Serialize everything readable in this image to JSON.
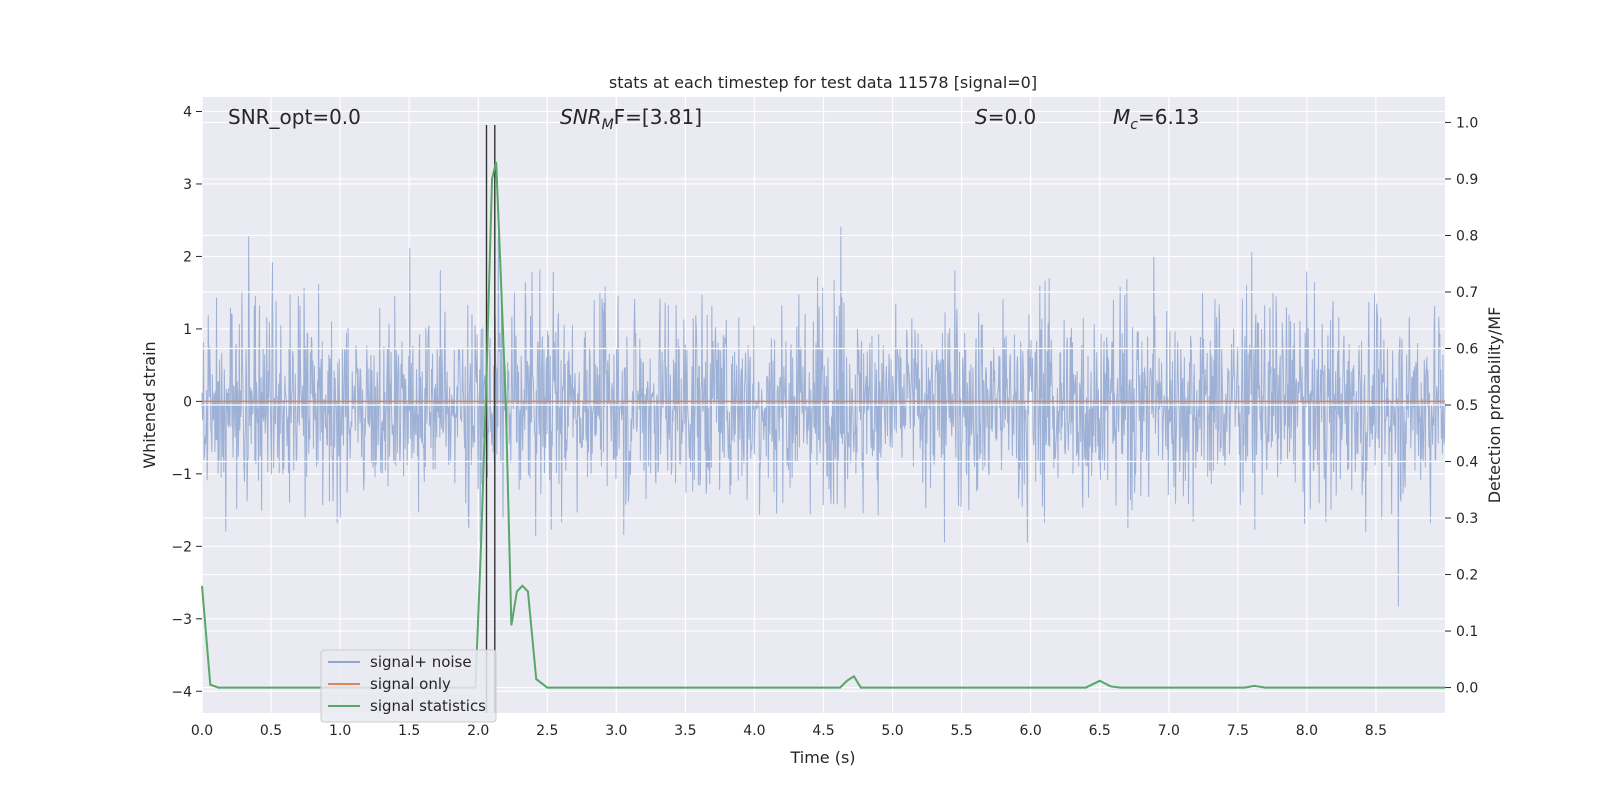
{
  "chart_data": {
    "type": "line",
    "title": "stats at each timestep for test data 11578 [signal=0]",
    "xlabel": "Time (s)",
    "ylabel": "Whitened strain",
    "y2label": "Detection probability/MF",
    "xlim": [
      0.0,
      9.0
    ],
    "ylim": [
      -4.3,
      4.2
    ],
    "y2lim": [
      -0.045,
      1.045
    ],
    "xticks": [
      "0.0",
      "0.5",
      "1.0",
      "1.5",
      "2.0",
      "2.5",
      "3.0",
      "3.5",
      "4.0",
      "4.5",
      "5.0",
      "5.5",
      "6.0",
      "6.5",
      "7.0",
      "7.5",
      "8.0",
      "8.5"
    ],
    "yticks": [
      "4",
      "3",
      "2",
      "1",
      "0",
      "−1",
      "−2",
      "−3",
      "−4"
    ],
    "y2ticks": [
      "1.0",
      "0.9",
      "0.8",
      "0.7",
      "0.6",
      "0.5",
      "0.4",
      "0.3",
      "0.2",
      "0.1",
      "0.0"
    ],
    "grid": true,
    "legend_position": "lower-left",
    "annotations": {
      "snr_opt": "SNR_opt=0.0",
      "snr_mf_main": "SNR",
      "snr_mf_sub": "M",
      "snr_mf_rest": "F=[3.81]",
      "s_main": "S",
      "s_rest": "=0.0",
      "mc_main": "M",
      "mc_sub": "c",
      "mc_rest": "=6.13"
    },
    "vlines_x": [
      2.06,
      2.12
    ],
    "series": [
      {
        "name": "signal+ noise",
        "color": "#8fa6d0",
        "axis": "left",
        "description_values": "whitened noise, approx. between -3.7 and 3.8"
      },
      {
        "name": "signal only",
        "color": "#dd8452",
        "axis": "left",
        "x": [
          0.0,
          9.0
        ],
        "y": [
          0.0,
          0.0
        ]
      },
      {
        "name": "signal statistics",
        "color": "#55a868",
        "axis": "right",
        "x": [
          0.0,
          0.06,
          0.12,
          0.2,
          1.9,
          1.98,
          2.02,
          2.06,
          2.1,
          2.13,
          2.16,
          2.2,
          2.24,
          2.28,
          2.32,
          2.36,
          2.42,
          2.5,
          4.62,
          4.67,
          4.72,
          4.77,
          6.4,
          6.5,
          6.58,
          6.65,
          7.55,
          7.62,
          7.7,
          9.0
        ],
        "y": [
          0.18,
          0.005,
          0.0,
          0.0,
          0.0,
          0.0,
          0.25,
          0.55,
          0.9,
          0.93,
          0.75,
          0.5,
          0.11,
          0.17,
          0.18,
          0.17,
          0.015,
          0.0,
          0.0,
          0.012,
          0.02,
          0.0,
          0.0,
          0.012,
          0.002,
          0.0,
          0.0,
          0.003,
          0.0,
          0.0
        ]
      }
    ]
  }
}
